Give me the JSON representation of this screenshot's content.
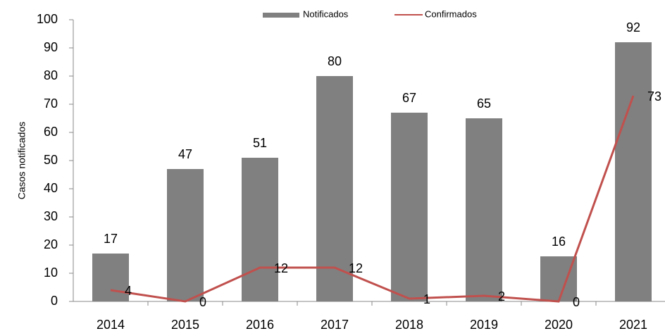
{
  "chart_data": {
    "type": "bar_line",
    "y_label": "Casos notificados",
    "categories": [
      "2014",
      "2015",
      "2016",
      "2017",
      "2018",
      "2019",
      "2020",
      "2021"
    ],
    "series": [
      {
        "name": "Notificados",
        "type": "bar",
        "color": "#808080",
        "values": [
          17,
          47,
          51,
          80,
          67,
          65,
          16,
          92
        ]
      },
      {
        "name": "Confirmados",
        "type": "line",
        "color": "#c0504d",
        "values": [
          4,
          0,
          12,
          12,
          1,
          2,
          0,
          73
        ]
      }
    ],
    "ylim": [
      0,
      100
    ],
    "yticks": [
      0,
      10,
      20,
      30,
      40,
      50,
      60,
      70,
      80,
      90,
      100
    ],
    "grid": false,
    "legend": "top"
  }
}
